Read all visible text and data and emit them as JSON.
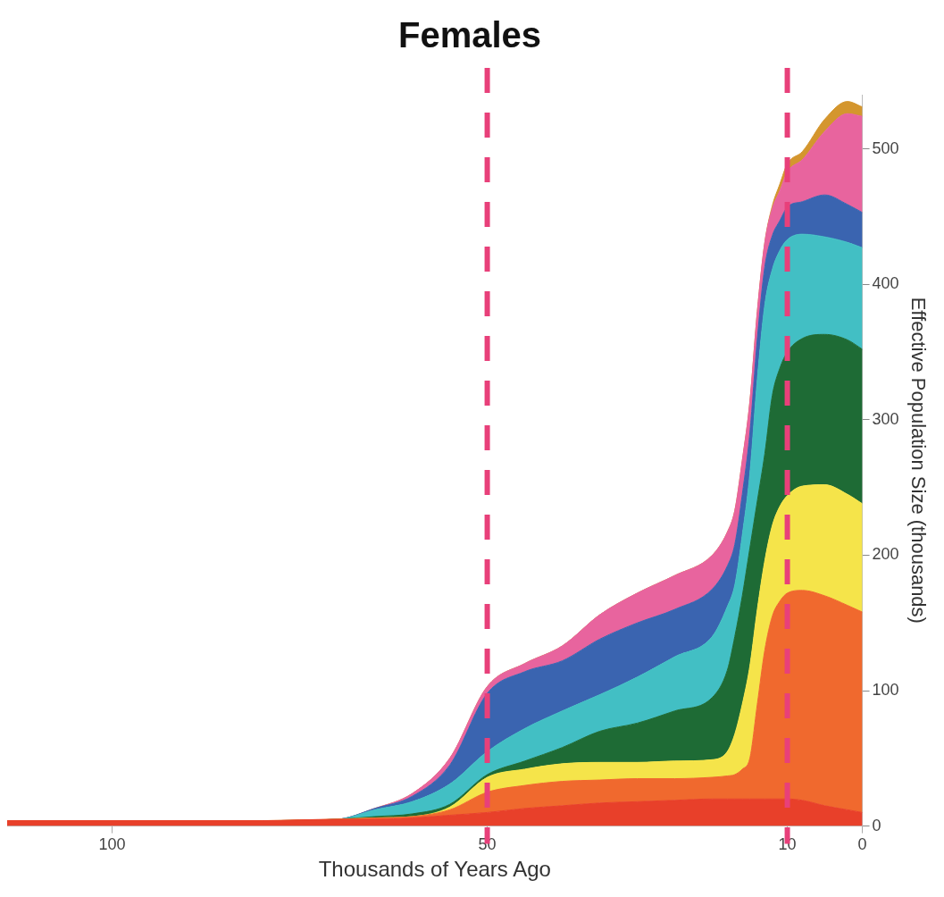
{
  "chart_data": {
    "type": "area",
    "stacked": true,
    "title": "Females",
    "xlabel": "Thousands of Years Ago",
    "ylabel": "Effective Population Size (thousands)",
    "x": [
      114,
      80,
      70,
      65,
      60,
      55,
      50,
      45,
      40,
      35,
      30,
      25,
      20,
      18,
      17,
      16,
      15,
      14,
      13,
      12,
      11,
      10,
      8,
      5,
      2,
      0
    ],
    "series": [
      {
        "color": "#e8402a",
        "values": [
          4,
          4,
          5,
          5,
          6,
          8,
          10,
          13,
          15,
          17,
          18,
          19,
          20,
          20,
          20,
          20,
          20,
          20,
          20,
          20,
          20,
          20,
          19,
          15,
          12,
          10
        ]
      },
      {
        "color": "#f0692e",
        "values": [
          0,
          0,
          0,
          1,
          1,
          4,
          15,
          17,
          18,
          17,
          17,
          16,
          16,
          17,
          18,
          22,
          30,
          70,
          110,
          135,
          146,
          152,
          155,
          155,
          151,
          148
        ]
      },
      {
        "color": "#f5e44a",
        "values": [
          0,
          0,
          0,
          0,
          0,
          2,
          11,
          12,
          13,
          13,
          12,
          13,
          13,
          18,
          30,
          48,
          68,
          70,
          66,
          67,
          70,
          72,
          77,
          82,
          82,
          80
        ]
      },
      {
        "color": "#1e6b35",
        "values": [
          0,
          0,
          0,
          1,
          2,
          2,
          2,
          6,
          12,
          23,
          29,
          37,
          46,
          60,
          72,
          80,
          87,
          80,
          79,
          96,
          102,
          106,
          109,
          111,
          114,
          114
        ]
      },
      {
        "color": "#42bfc4",
        "values": [
          0,
          0,
          0,
          5,
          9,
          15,
          17,
          24,
          27,
          27,
          34,
          40,
          45,
          47,
          38,
          45,
          55,
          90,
          110,
          93,
          87,
          83,
          77,
          72,
          72,
          75
        ]
      },
      {
        "color": "#3a64b0",
        "values": [
          0,
          0,
          0,
          1,
          4,
          14,
          43,
          42,
          37,
          41,
          40,
          35,
          35,
          30,
          30,
          30,
          30,
          30,
          28,
          25,
          22,
          24,
          24,
          31,
          28,
          26
        ]
      },
      {
        "color": "#e8649e",
        "values": [
          0,
          0,
          0,
          0,
          2,
          5,
          5,
          6,
          11,
          18,
          22,
          25,
          25,
          25,
          25,
          25,
          23,
          20,
          18,
          20,
          22,
          26,
          31,
          47,
          67,
          71
        ]
      },
      {
        "color": "#d4962e",
        "values": [
          0,
          0,
          0,
          0,
          0,
          0,
          0,
          0,
          0,
          0,
          0,
          0,
          0,
          0,
          0,
          0,
          0,
          0,
          0,
          2,
          5,
          6,
          6,
          9,
          9,
          7
        ]
      }
    ],
    "xlim": [
      114,
      0
    ],
    "xticks": [
      100,
      50,
      10,
      0
    ],
    "ylim": [
      0,
      540
    ],
    "yticks": [
      0,
      100,
      200,
      300,
      400,
      500
    ],
    "ref_lines": [
      {
        "axis": "x",
        "value": 50,
        "color": "#e8407a",
        "line_style": "dashed"
      },
      {
        "axis": "x",
        "value": 10,
        "color": "#e8407a",
        "line_style": "dashed"
      }
    ],
    "grid": false,
    "legend": false
  }
}
